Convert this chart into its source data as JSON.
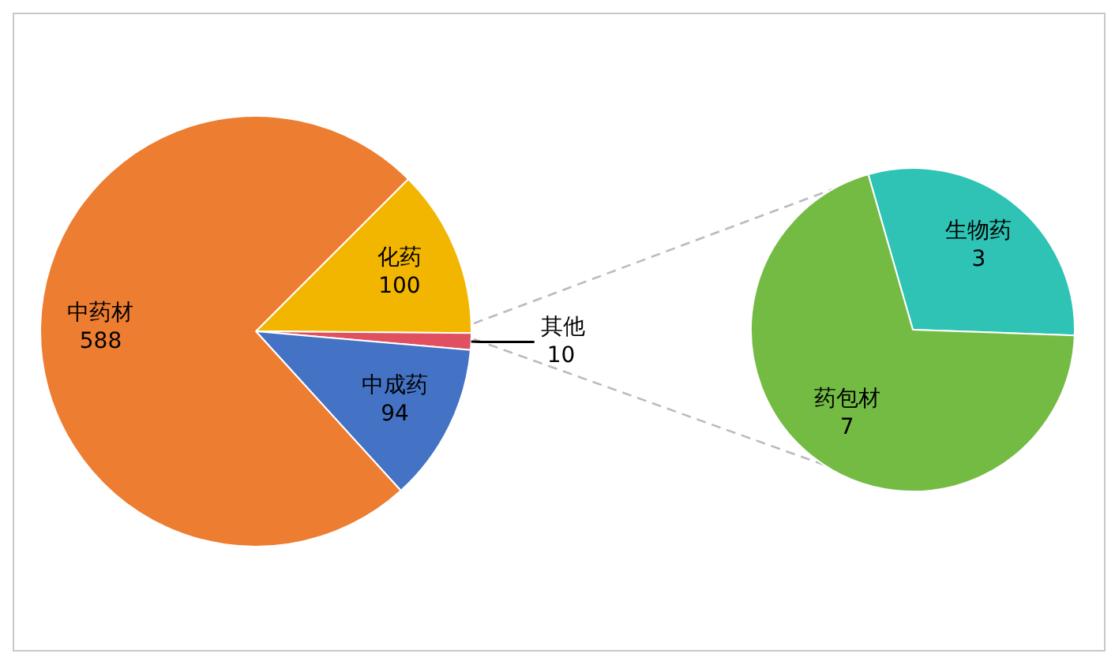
{
  "chart_data": [
    {
      "type": "pie",
      "categories": [
        "化药",
        "其他",
        "中成药",
        "中药材"
      ],
      "values": [
        100,
        10,
        94,
        588
      ],
      "colors": [
        "#f2b600",
        "#e0505f",
        "#4472c4",
        "#ed7d31"
      ],
      "data_labels": true
    },
    {
      "type": "pie",
      "categories": [
        "生物药",
        "药包材"
      ],
      "values": [
        3,
        7
      ],
      "colors": [
        "#2ec3b5",
        "#74bb44"
      ],
      "data_labels": true
    }
  ]
}
